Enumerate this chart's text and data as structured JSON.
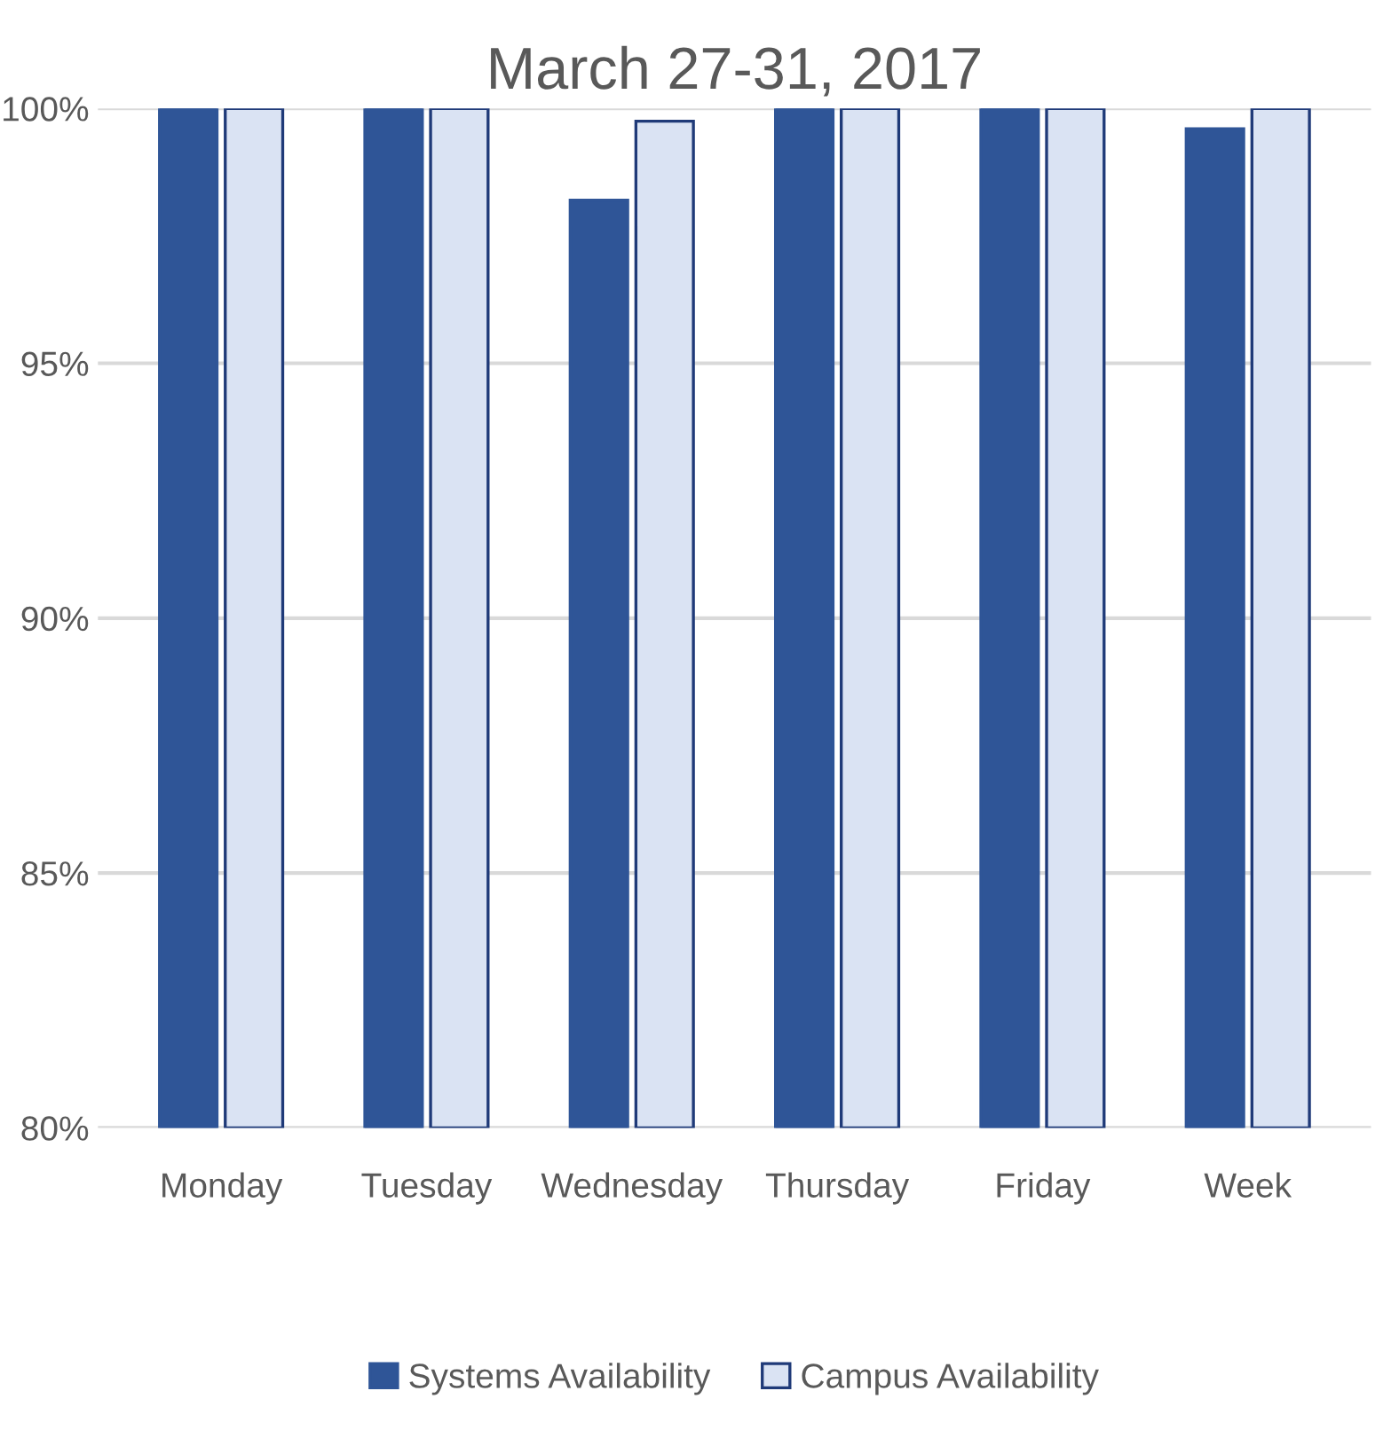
{
  "chart_data": {
    "type": "bar",
    "title": "March 27-31, 2017",
    "categories": [
      "Monday",
      "Tuesday",
      "Wednesday",
      "Thursday",
      "Friday",
      "Week"
    ],
    "series": [
      {
        "name": "Systems Availability",
        "color": "#2f5597",
        "values": [
          100,
          100,
          98.2,
          100,
          100,
          99.6
        ]
      },
      {
        "name": "Campus Availability",
        "color": "#dae3f3",
        "values": [
          100,
          100,
          99.75,
          100,
          100,
          100
        ]
      }
    ],
    "ylim": [
      80,
      100
    ],
    "yticks": [
      {
        "value": 80,
        "label": "80%"
      },
      {
        "value": 85,
        "label": "85%"
      },
      {
        "value": 90,
        "label": "90%"
      },
      {
        "value": 95,
        "label": "95%"
      },
      {
        "value": 100,
        "label": "100%"
      }
    ],
    "grid": "y",
    "legend": "bottom"
  }
}
